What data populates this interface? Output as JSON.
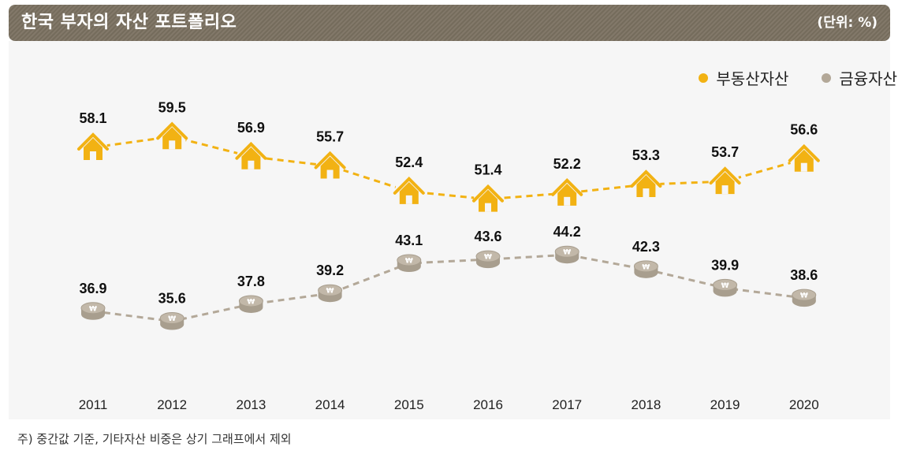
{
  "header": {
    "title": "한국 부자의 자산 포트폴리오",
    "unit": "(단위: %)"
  },
  "legend": [
    {
      "label": "부동산자산",
      "color": "#f2b213"
    },
    {
      "label": "금융자산",
      "color": "#b3a898"
    }
  ],
  "footnote": "주) 중간값 기준, 기타자산 비중은 상기 그래프에서 제외",
  "chart_data": {
    "type": "line",
    "x": [
      "2011",
      "2012",
      "2013",
      "2014",
      "2015",
      "2016",
      "2017",
      "2018",
      "2019",
      "2020"
    ],
    "series": [
      {
        "name": "부동산자산",
        "color": "#f2b213",
        "marker": "house-icon",
        "values": [
          58.1,
          59.5,
          56.9,
          55.7,
          52.4,
          51.4,
          52.2,
          53.3,
          53.7,
          56.6
        ]
      },
      {
        "name": "금융자산",
        "color": "#b3a898",
        "marker": "coin-icon",
        "values": [
          36.9,
          35.6,
          37.8,
          39.2,
          43.1,
          43.6,
          44.2,
          42.3,
          39.9,
          38.6
        ]
      }
    ],
    "line_style": "dashed",
    "grid": false,
    "legend_position": "top-right"
  }
}
